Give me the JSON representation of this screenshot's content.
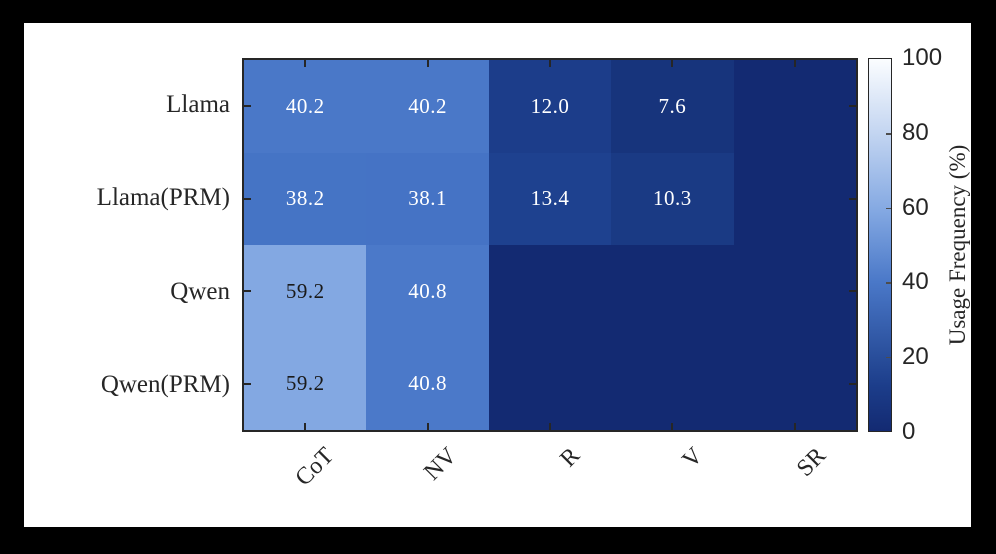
{
  "figure": {
    "background": "#000000",
    "panel_background": "#ffffff",
    "axes_color": "#262626"
  },
  "chart_data": {
    "type": "heatmap",
    "rows": [
      "Llama",
      "Llama(PRM)",
      "Qwen",
      "Qwen(PRM)"
    ],
    "columns": [
      "CoT",
      "NV",
      "R",
      "V",
      "SR"
    ],
    "values": [
      [
        40.2,
        40.2,
        12.0,
        7.6,
        0.0
      ],
      [
        38.2,
        38.1,
        13.4,
        10.3,
        0.0
      ],
      [
        59.2,
        40.8,
        0.0,
        0.0,
        0.0
      ],
      [
        59.2,
        40.8,
        0.0,
        0.0,
        0.0
      ]
    ],
    "cell_labels": [
      [
        "40.2",
        "40.2",
        "12.0",
        "7.6",
        ""
      ],
      [
        "38.2",
        "38.1",
        "13.4",
        "10.3",
        ""
      ],
      [
        "59.2",
        "40.8",
        "",
        "",
        ""
      ],
      [
        "59.2",
        "40.8",
        "",
        "",
        ""
      ]
    ],
    "cell_colors": [
      [
        "#4a78c8",
        "#4a78c8",
        "#1c3d8a",
        "#17347c",
        "#132a72"
      ],
      [
        "#4574c5",
        "#4573c5",
        "#1e418f",
        "#1a3a84",
        "#132a72"
      ],
      [
        "#83a8e2",
        "#4b79c9",
        "#132a72",
        "#132a72",
        "#132a72"
      ],
      [
        "#83a8e2",
        "#4b79c9",
        "#132a72",
        "#132a72",
        "#132a72"
      ]
    ],
    "cell_label_colors": [
      [
        "#ffffff",
        "#ffffff",
        "#ffffff",
        "#ffffff",
        ""
      ],
      [
        "#ffffff",
        "#ffffff",
        "#ffffff",
        "#ffffff",
        ""
      ],
      [
        "#1a1a1a",
        "#ffffff",
        "",
        "",
        ""
      ],
      [
        "#1a1a1a",
        "#ffffff",
        "",
        "",
        ""
      ]
    ],
    "colorbar": {
      "label": "Usage Frequency (%)",
      "min": 0,
      "max": 100,
      "tick_values": [
        0,
        20,
        40,
        60,
        80,
        100
      ],
      "tick_labels": [
        "0",
        "20",
        "40",
        "60",
        "80",
        "100"
      ],
      "gradient_stops": [
        {
          "pct": 0,
          "color": "#132a72"
        },
        {
          "pct": 12,
          "color": "#1c3d8a"
        },
        {
          "pct": 20,
          "color": "#294e9b"
        },
        {
          "pct": 40,
          "color": "#4a78c8"
        },
        {
          "pct": 59,
          "color": "#83a8e2"
        },
        {
          "pct": 80,
          "color": "#c3d5f1"
        },
        {
          "pct": 100,
          "color": "#fbfdff"
        }
      ],
      "orientation": "vertical",
      "label_position": "right"
    },
    "grid": false,
    "x_tick_rotation": 45
  }
}
